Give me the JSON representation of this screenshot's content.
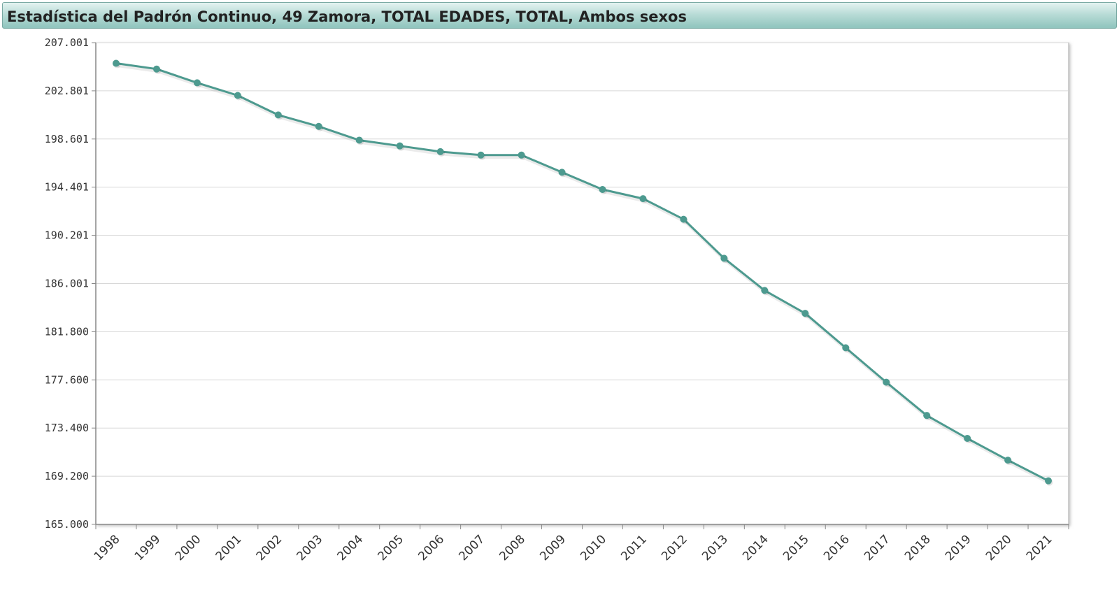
{
  "colors": {
    "series": "#4d9a8f",
    "grid": "#d8d8d8",
    "axis": "#888888"
  },
  "chart_data": {
    "type": "line",
    "title": "Estadística del Padrón Continuo, 49 Zamora, TOTAL EDADES, TOTAL, Ambos sexos",
    "xlabel": "",
    "ylabel": "",
    "ylim": [
      165000,
      207001
    ],
    "y_tick_values": [
      165000,
      169200,
      173400,
      177600,
      181800,
      186001,
      190201,
      194401,
      198601,
      202801,
      207001
    ],
    "y_tick_labels": [
      "165.000",
      "169.200",
      "173.400",
      "177.600",
      "181.800",
      "186.001",
      "190.201",
      "194.401",
      "198.601",
      "202.801",
      "207.001"
    ],
    "categories": [
      "1998",
      "1999",
      "2000",
      "2001",
      "2002",
      "2003",
      "2004",
      "2005",
      "2006",
      "2007",
      "2008",
      "2009",
      "2010",
      "2011",
      "2012",
      "2013",
      "2014",
      "2015",
      "2016",
      "2017",
      "2018",
      "2019",
      "2020",
      "2021"
    ],
    "series": [
      {
        "name": "Ambos sexos",
        "values": [
          205200,
          204700,
          203500,
          202400,
          200700,
          199700,
          198500,
          198000,
          197500,
          197200,
          197200,
          195700,
          194200,
          193400,
          191600,
          188200,
          185400,
          183400,
          180400,
          177400,
          174500,
          172500,
          170600,
          168800
        ]
      }
    ]
  }
}
